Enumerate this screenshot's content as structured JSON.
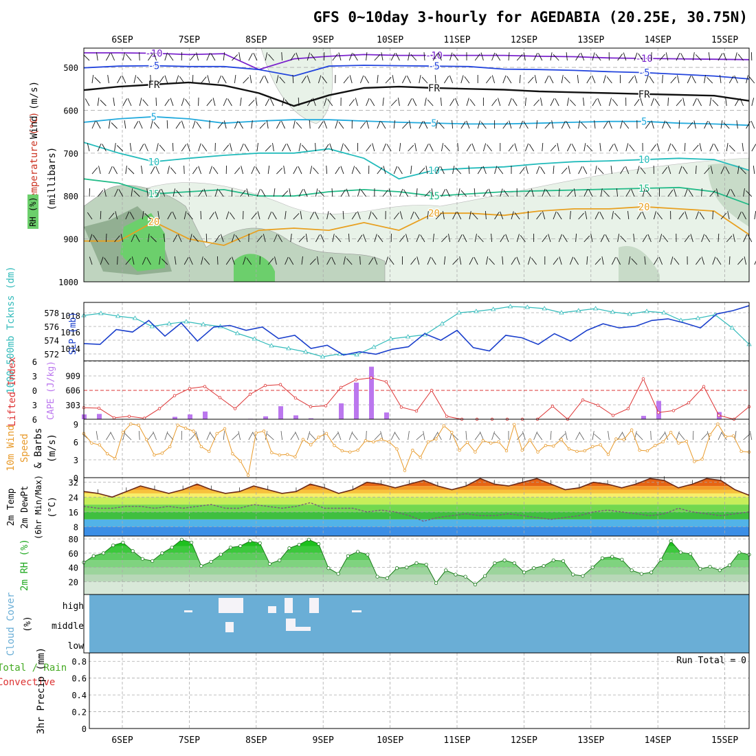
{
  "title": "GFS 0~10day 3-hourly for AGEDABIA (20.25E, 30.75N)",
  "dates": [
    "6SEP",
    "7SEP",
    "8SEP",
    "9SEP",
    "10SEP",
    "11SEP",
    "12SEP",
    "13SEP",
    "14SEP",
    "15SEP"
  ],
  "colors": {
    "grid": "#aaaaaa",
    "rh_light": "#e8f2e8",
    "rh_mid": "#bfd4bf",
    "rh_dark": "#7fa07f",
    "rh_green": "#6ccf6c",
    "slp": "#1a3fcc",
    "thickness": "#33bbbb",
    "lifted": "#dd3333",
    "cape": "#bb77ee",
    "wind10": "#e89a2a",
    "cloud": "#6aaed6"
  },
  "chart_data": [
    {
      "type": "contour",
      "panel": "upper-air",
      "ylabel": "(millibars)",
      "side_labels": {
        "wind": "Wind (m/s)",
        "temp": "Temperature (°C)",
        "rh": "RH (%)"
      },
      "y_ticks": [
        500,
        600,
        700,
        800,
        900,
        1000
      ],
      "temperature_isotherms": [
        {
          "label": "-10",
          "color": "#7a22cc",
          "pressure": [
            466,
            466,
            467,
            470,
            468,
            505,
            480,
            474,
            470,
            472,
            472,
            472,
            472,
            474,
            475,
            478,
            479,
            480,
            481,
            482
          ]
        },
        {
          "label": "-5",
          "color": "#2244dd",
          "pressure": [
            501,
            497,
            496,
            498,
            498,
            505,
            520,
            497,
            495,
            496,
            497,
            498,
            504,
            505,
            507,
            510,
            512,
            516,
            520,
            527
          ]
        },
        {
          "label": "FR",
          "color": "#111111",
          "pressure": [
            553,
            545,
            540,
            535,
            542,
            560,
            590,
            565,
            548,
            545,
            548,
            550,
            552,
            556,
            558,
            560,
            562,
            564,
            566,
            578
          ]
        },
        {
          "label": "5",
          "color": "#22aadd",
          "pressure": [
            628,
            620,
            615,
            620,
            630,
            625,
            622,
            622,
            625,
            628,
            630,
            632,
            632,
            630,
            628,
            626,
            626,
            630,
            632,
            635
          ]
        },
        {
          "label": "10",
          "color": "#22bbbb",
          "pressure": [
            675,
            700,
            720,
            712,
            705,
            700,
            700,
            690,
            712,
            760,
            740,
            735,
            732,
            725,
            720,
            718,
            715,
            712,
            715,
            740
          ]
        },
        {
          "label": "15",
          "color": "#22bb88",
          "pressure": [
            760,
            770,
            795,
            790,
            785,
            800,
            800,
            790,
            785,
            790,
            800,
            795,
            790,
            788,
            786,
            784,
            782,
            780,
            790,
            820
          ]
        },
        {
          "label": "20",
          "color": "#e8a020",
          "pressure": [
            905,
            905,
            860,
            900,
            915,
            880,
            875,
            880,
            862,
            880,
            840,
            840,
            845,
            835,
            830,
            830,
            825,
            830,
            835,
            890
          ]
        }
      ],
      "rh_labels": [
        "10",
        "10",
        "10",
        "30",
        "30",
        "30",
        "50",
        "50",
        "30",
        "10",
        "10"
      ]
    },
    {
      "type": "line",
      "panel": "slp-thickness",
      "ylabel_left": "1000-500mb Tcknss (dm)",
      "ylabel_right": "SLP (mb)",
      "y_ticks_left": [
        572,
        574,
        576,
        578
      ],
      "y_ticks_right": [
        1014,
        1016,
        1018
      ],
      "series": [
        {
          "name": "SLP",
          "unit": "mb",
          "values": [
            1014.6,
            1014.5,
            1016.3,
            1016.0,
            1017.4,
            1015.5,
            1017.1,
            1014.9,
            1016.6,
            1016.8,
            1016.2,
            1016.6,
            1015.2,
            1015.6,
            1014.0,
            1014.4,
            1013.2,
            1013.6,
            1013.3,
            1013.9,
            1014.2,
            1015.8,
            1015.0,
            1016.2,
            1014.1,
            1013.7,
            1015.6,
            1015.3,
            1014.5,
            1015.8,
            1014.9,
            1016.2,
            1017.0,
            1016.5,
            1016.7,
            1017.4,
            1017.6,
            1017.1,
            1016.5,
            1018.2,
            1018.6,
            1019.2
          ],
          "comment_x": "index 0..41 over 6SEP-15SEP"
        },
        {
          "name": "1000-500mb Thickness",
          "unit": "dm",
          "values": [
            577.6,
            577.9,
            577.5,
            577.2,
            576.0,
            576.4,
            576.7,
            576.3,
            576.0,
            575.0,
            574.2,
            573.2,
            572.8,
            572.3,
            571.6,
            572.0,
            571.9,
            573.0,
            574.2,
            574.5,
            574.8,
            576.4,
            578.0,
            578.2,
            578.5,
            578.9,
            578.8,
            578.6,
            578.0,
            578.3,
            578.6,
            578.1,
            577.8,
            578.2,
            578.0,
            576.9,
            577.2,
            577.7,
            575.8,
            573.4
          ]
        }
      ]
    },
    {
      "type": "bar-line",
      "panel": "cape-li",
      "ylabel_left": "Lifted Index",
      "ylabel_right": "CAPE (J/kg)",
      "li_ticks": [
        -6,
        -3,
        0,
        3,
        6
      ],
      "cape_ticks": [
        303,
        606,
        909
      ],
      "lifted_index": [
        3.6,
        3.7,
        5.7,
        5.4,
        5.8,
        3.8,
        1.1,
        -0.4,
        -0.8,
        1.5,
        3.8,
        0.8,
        -1.0,
        -1.2,
        1.6,
        3.4,
        3.2,
        -0.6,
        -2.2,
        -2.6,
        -1.8,
        3.5,
        4.3,
        0.0,
        5.4,
        6.9,
        6.7,
        6.7,
        7.3,
        6.6,
        6.8,
        3.3,
        6.1,
        2.0,
        3.1,
        5.2,
        3.8,
        -2.4,
        4.6,
        4.2,
        2.6,
        -0.8,
        5.2,
        6.6,
        3.4
      ],
      "cape": [
        100,
        110,
        0,
        0,
        0,
        0,
        50,
        100,
        160,
        0,
        0,
        10,
        60,
        270,
        80,
        20,
        0,
        330,
        760,
        1090,
        140,
        0,
        0,
        0,
        0,
        10,
        0,
        0,
        0,
        0,
        0,
        0,
        0,
        0,
        0,
        0,
        0,
        70,
        380,
        0,
        0,
        0,
        150,
        0,
        0
      ]
    },
    {
      "type": "line",
      "panel": "wind10",
      "ylabel": "10m Wind Speed & Barbs (m/s)",
      "y_ticks": [
        0,
        3,
        6,
        9
      ],
      "series": [
        {
          "name": "10m Wind Speed",
          "values": [
            7.4,
            5.8,
            5.5,
            4.0,
            3.2,
            7.6,
            9.0,
            8.8,
            6.4,
            3.8,
            4.1,
            5.2,
            8.8,
            8.3,
            7.8,
            5.2,
            4.4,
            7.4,
            8.2,
            4.0,
            2.8,
            0.4,
            7.5,
            7.8,
            4.2,
            3.8,
            3.9,
            3.5,
            6.4,
            5.5,
            6.8,
            7.4,
            5.4,
            4.5,
            4.3,
            4.6,
            6.2,
            6.0,
            6.4,
            6.0,
            4.8,
            1.2,
            4.6,
            3.4,
            6.0,
            6.5,
            8.7,
            7.6,
            4.6,
            5.9,
            4.3,
            6.2,
            5.8,
            6.0,
            4.5,
            8.9,
            4.6,
            6.3,
            4.3,
            5.4,
            5.3,
            6.4,
            4.8,
            4.4,
            4.5,
            5.2,
            5.5,
            3.9,
            6.5,
            6.4,
            8.0,
            4.6,
            4.5,
            5.4,
            6.0,
            7.6,
            5.8,
            6.1,
            2.7,
            3.1,
            7.2,
            9.0,
            6.9,
            7.0,
            4.4,
            4.3
          ]
        }
      ]
    },
    {
      "type": "area",
      "panel": "temp2m",
      "ylabel": "2m Temp 2m DewPt (6hr Min/Max) (°C)",
      "y_ticks": [
        8,
        16,
        24,
        32
      ],
      "series": [
        {
          "name": "2m Temp",
          "values": [
            27,
            26,
            24,
            27,
            30,
            28,
            26,
            28,
            31,
            28,
            26,
            27,
            30,
            28,
            26,
            27,
            31,
            29,
            26,
            28,
            32,
            31,
            29,
            31,
            33,
            30,
            28,
            30,
            34,
            31,
            30,
            32,
            34,
            31,
            28,
            29,
            32,
            31,
            29,
            31,
            34,
            33,
            29,
            31,
            34,
            33,
            28,
            25
          ]
        },
        {
          "name": "2m DewPt",
          "values": [
            19,
            18,
            18,
            19,
            19,
            18,
            19,
            18,
            19,
            20,
            18,
            18,
            20,
            19,
            18,
            19,
            21,
            18,
            18,
            18,
            16,
            17,
            16,
            14,
            11,
            13,
            14,
            15,
            14,
            14,
            15,
            14,
            13,
            12,
            13,
            14,
            16,
            17,
            16,
            15,
            14,
            15,
            18,
            16,
            15,
            14,
            15,
            16
          ]
        }
      ]
    },
    {
      "type": "area",
      "panel": "rh2m",
      "ylabel": "2m RH (%)",
      "y_ticks": [
        20,
        40,
        60,
        80
      ],
      "series": [
        {
          "name": "2m RH",
          "values": [
            47,
            56,
            60,
            71,
            75,
            63,
            52,
            49,
            60,
            68,
            79,
            75,
            42,
            48,
            58,
            68,
            70,
            77,
            74,
            45,
            50,
            67,
            72,
            79,
            73,
            39,
            31,
            56,
            62,
            58,
            27,
            25,
            39,
            40,
            46,
            44,
            18,
            36,
            30,
            27,
            16,
            28,
            46,
            50,
            46,
            33,
            39,
            42,
            50,
            49,
            30,
            28,
            40,
            53,
            55,
            51,
            36,
            31,
            33,
            51,
            77,
            61,
            59,
            38,
            41,
            36,
            43,
            61,
            58
          ]
        }
      ]
    },
    {
      "type": "bar",
      "panel": "cloud",
      "ylabel": "Cloud Cover (%)",
      "levels": [
        "high",
        "middle",
        "low"
      ],
      "run_total": "Run Total = 0"
    },
    {
      "type": "bar",
      "panel": "precip",
      "ylabel": "3hr Precip (mm)",
      "side_labels": {
        "total": "Total / Rain",
        "conv": "Convective"
      },
      "y_ticks": [
        0,
        0.2,
        0.4,
        0.6,
        0.8
      ],
      "values": []
    }
  ]
}
